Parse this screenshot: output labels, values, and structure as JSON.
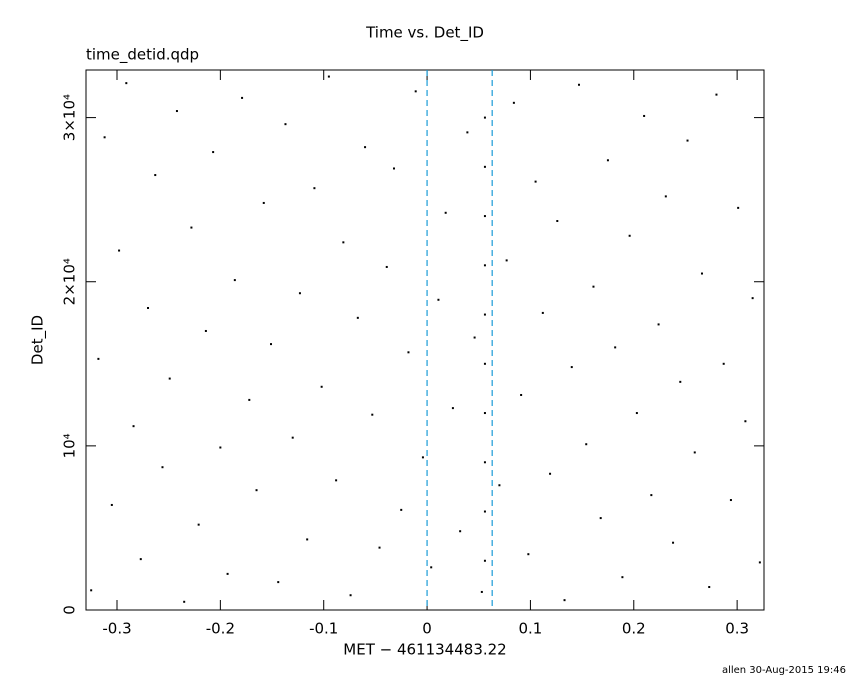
{
  "chart_data": {
    "type": "scatter",
    "title": "Time vs. Det_ID",
    "subtitle": "time_detid.qdp",
    "x_label": "MET − 461134483.22",
    "y_label": "Det_ID",
    "footer": "allen 30-Aug-2015 19:46",
    "color": "#000000",
    "vlines": [
      0,
      0.063
    ],
    "vline_color": "#1a9bd7",
    "xlim": [
      -0.33,
      0.326
    ],
    "ylim": [
      0,
      32900
    ],
    "xticks": [
      -0.3,
      -0.2,
      -0.1,
      0,
      0.1,
      0.2,
      0.3
    ],
    "yticks": [
      0,
      {
        "value": 10000,
        "label": "10⁴"
      },
      {
        "value": 20000,
        "label": "2×10⁴"
      },
      {
        "value": 30000,
        "label": "3×10⁴"
      }
    ],
    "x": [
      -0.325,
      -0.318,
      -0.312,
      -0.305,
      -0.298,
      -0.291,
      -0.284,
      -0.277,
      -0.27,
      -0.263,
      -0.256,
      -0.249,
      -0.242,
      -0.235,
      -0.228,
      -0.221,
      -0.214,
      -0.207,
      -0.2,
      -0.193,
      -0.186,
      -0.179,
      -0.172,
      -0.165,
      -0.158,
      -0.151,
      -0.144,
      -0.137,
      -0.13,
      -0.123,
      -0.116,
      -0.109,
      -0.102,
      -0.095,
      -0.088,
      -0.081,
      -0.074,
      -0.067,
      -0.06,
      -0.053,
      -0.046,
      -0.039,
      -0.032,
      -0.025,
      -0.018,
      -0.011,
      -0.004,
      0.004,
      0.011,
      0.018,
      0.025,
      0.032,
      0.039,
      0.046,
      0.053,
      0.056,
      0.056,
      0.056,
      0.056,
      0.056,
      0.056,
      0.056,
      0.056,
      0.056,
      0.056,
      0.07,
      0.077,
      0.084,
      0.091,
      0.098,
      0.105,
      0.112,
      0.119,
      0.126,
      0.133,
      0.14,
      0.147,
      0.154,
      0.161,
      0.168,
      0.175,
      0.182,
      0.189,
      0.196,
      0.203,
      0.21,
      0.217,
      0.224,
      0.231,
      0.238,
      0.245,
      0.252,
      0.259,
      0.266,
      0.273,
      0.28,
      0.287,
      0.294,
      0.301,
      0.308,
      0.315,
      0.322
    ],
    "values": [
      1200,
      15300,
      28800,
      6400,
      21900,
      32100,
      11200,
      3100,
      18400,
      26500,
      8700,
      14100,
      30400,
      500,
      23300,
      5200,
      17000,
      27900,
      9900,
      2200,
      20100,
      31200,
      12800,
      7300,
      24800,
      16200,
      1700,
      29600,
      10500,
      19300,
      4300,
      25700,
      13600,
      32500,
      7900,
      22400,
      900,
      17800,
      28200,
      11900,
      3800,
      20900,
      26900,
      6100,
      15700,
      31600,
      9300,
      2600,
      18900,
      24200,
      12300,
      4800,
      29100,
      16600,
      1100,
      3000,
      6000,
      9000,
      12000,
      15000,
      18000,
      21000,
      24000,
      27000,
      30000,
      7600,
      21300,
      30900,
      13100,
      3400,
      26100,
      18100,
      8300,
      23700,
      600,
      14800,
      32000,
      10100,
      19700,
      5600,
      27400,
      16000,
      2000,
      22800,
      12000,
      30100,
      7000,
      17400,
      25200,
      4100,
      13900,
      28600,
      9600,
      20500,
      1400,
      31400,
      15000,
      6700,
      24500,
      11500,
      19000,
      2900
    ]
  }
}
